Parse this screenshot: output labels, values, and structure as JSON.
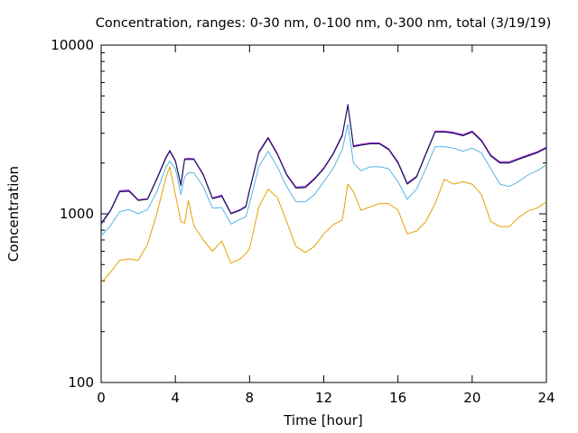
{
  "chart_data": {
    "type": "line",
    "title": "Concentration, ranges: 0-30 nm, 0-100 nm, 0-300 nm, total (3/19/19)",
    "xlabel": "Time [hour]",
    "ylabel": "Concentration",
    "xlim": [
      0,
      24
    ],
    "ylim": [
      100,
      10000
    ],
    "yscale": "log",
    "grid": false,
    "x_ticks": [
      0,
      4,
      8,
      12,
      16,
      20,
      24
    ],
    "x_tick_labels": [
      "0",
      "4",
      "8",
      "12",
      "16",
      "20",
      "24"
    ],
    "y_ticks": [
      100,
      1000,
      10000
    ],
    "y_tick_labels": [
      "100",
      "1000",
      "10000"
    ],
    "x": [
      0,
      0.5,
      1,
      1.5,
      2,
      2.5,
      3,
      3.5,
      3.7,
      4,
      4.3,
      4.5,
      4.7,
      5,
      5.5,
      6,
      6.5,
      7,
      7.5,
      7.8,
      8,
      8.5,
      9,
      9.5,
      10,
      10.5,
      11,
      11.5,
      12,
      12.5,
      13,
      13.3,
      13.6,
      14,
      14.5,
      15,
      15.5,
      16,
      16.5,
      17,
      17.5,
      18,
      18.5,
      19,
      19.5,
      20,
      20.5,
      21,
      21.5,
      22,
      22.5,
      23,
      23.5,
      24
    ],
    "series": [
      {
        "color": "#e8a000",
        "values": [
          390,
          450,
          530,
          540,
          530,
          660,
          1000,
          1650,
          1900,
          1300,
          900,
          880,
          1200,
          850,
          700,
          600,
          690,
          510,
          540,
          580,
          620,
          1100,
          1400,
          1250,
          900,
          640,
          590,
          640,
          760,
          860,
          920,
          1500,
          1350,
          1050,
          1100,
          1150,
          1150,
          1050,
          760,
          790,
          900,
          1150,
          1600,
          1500,
          1550,
          1500,
          1300,
          900,
          840,
          840,
          950,
          1040,
          1080,
          1180
        ]
      },
      {
        "color": "#56b4e9",
        "values": [
          740,
          850,
          1030,
          1060,
          1000,
          1060,
          1350,
          1900,
          2050,
          1850,
          1300,
          1650,
          1750,
          1750,
          1450,
          1080,
          1090,
          870,
          930,
          960,
          1150,
          1900,
          2350,
          1900,
          1450,
          1180,
          1180,
          1300,
          1550,
          1850,
          2400,
          3400,
          2000,
          1800,
          1900,
          1900,
          1850,
          1550,
          1220,
          1400,
          1850,
          2500,
          2500,
          2450,
          2350,
          2450,
          2300,
          1850,
          1500,
          1450,
          1550,
          1700,
          1800,
          1950
        ]
      },
      {
        "color": "#009e73",
        "values": [
          870,
          1040,
          1350,
          1360,
          1200,
          1220,
          1600,
          2150,
          2350,
          2050,
          1470,
          2100,
          2100,
          2100,
          1700,
          1230,
          1270,
          1000,
          1050,
          1100,
          1370,
          2300,
          2800,
          2250,
          1700,
          1420,
          1430,
          1600,
          1850,
          2250,
          2900,
          4400,
          2500,
          2550,
          2600,
          2600,
          2400,
          2000,
          1500,
          1650,
          2250,
          3050,
          3050,
          3000,
          2900,
          3050,
          2700,
          2200,
          2000,
          2000,
          2100,
          2200,
          2300,
          2450
        ]
      },
      {
        "color": "#9400d3",
        "values": [
          880,
          1050,
          1370,
          1380,
          1210,
          1230,
          1620,
          2180,
          2380,
          2070,
          1490,
          2120,
          2130,
          2120,
          1720,
          1240,
          1290,
          1010,
          1060,
          1110,
          1390,
          2330,
          2840,
          2280,
          1720,
          1440,
          1450,
          1620,
          1870,
          2280,
          2940,
          4460,
          2530,
          2580,
          2630,
          2630,
          2430,
          2030,
          1520,
          1670,
          2280,
          3090,
          3090,
          3040,
          2940,
          3090,
          2740,
          2230,
          2030,
          2030,
          2130,
          2230,
          2330,
          2480
        ]
      },
      {
        "color": "#1a1a4e",
        "values": [
          870,
          1040,
          1350,
          1360,
          1200,
          1220,
          1600,
          2150,
          2350,
          2050,
          1470,
          2100,
          2100,
          2100,
          1700,
          1230,
          1270,
          1000,
          1050,
          1100,
          1370,
          2300,
          2800,
          2250,
          1700,
          1420,
          1430,
          1600,
          1850,
          2250,
          2900,
          4400,
          2500,
          2550,
          2600,
          2600,
          2400,
          2000,
          1500,
          1650,
          2250,
          3050,
          3050,
          3000,
          2900,
          3050,
          2700,
          2200,
          2000,
          2000,
          2100,
          2200,
          2300,
          2450
        ]
      }
    ]
  }
}
